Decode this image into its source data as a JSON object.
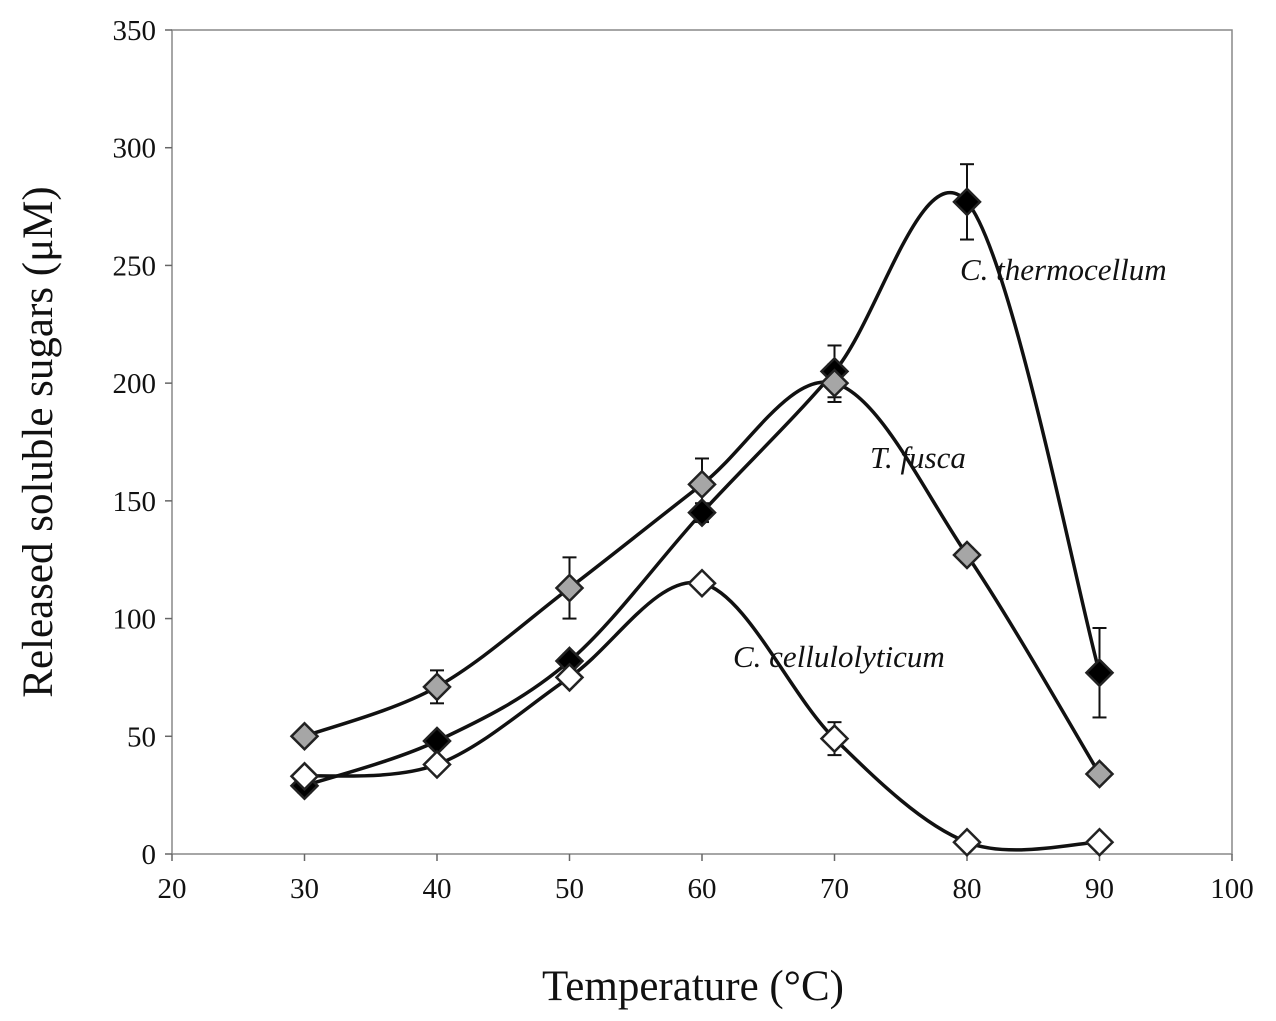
{
  "chart_data": {
    "type": "scatter",
    "xlabel": "Temperature (°C)",
    "ylabel": "Released soluble sugars (μM)",
    "xlim": [
      20,
      100
    ],
    "ylim": [
      0,
      350
    ],
    "xticks": [
      20,
      30,
      40,
      50,
      60,
      70,
      80,
      90,
      100
    ],
    "yticks": [
      0,
      50,
      100,
      150,
      200,
      250,
      300,
      350
    ],
    "grid": false,
    "series": [
      {
        "name": "C. thermocellum",
        "marker": "diamond",
        "fill": "#000000",
        "x": [
          30,
          40,
          50,
          60,
          70,
          80,
          90
        ],
        "y": [
          29,
          48,
          82,
          145,
          205,
          277,
          77
        ],
        "err": [
          3,
          3,
          3,
          4,
          11,
          16,
          19
        ]
      },
      {
        "name": "T. fusca",
        "marker": "diamond",
        "fill": "#a6a6a6",
        "x": [
          30,
          40,
          50,
          60,
          70,
          80,
          90
        ],
        "y": [
          50,
          71,
          113,
          157,
          200,
          127,
          34
        ],
        "err": [
          2,
          7,
          13,
          11,
          8,
          3,
          3
        ]
      },
      {
        "name": "C. cellulolyticum",
        "marker": "diamond",
        "fill": "#ffffff",
        "x": [
          30,
          40,
          50,
          60,
          70,
          80,
          90
        ],
        "y": [
          33,
          38,
          75,
          115,
          49,
          5,
          5
        ],
        "err": [
          2,
          2,
          3,
          2,
          7,
          2,
          2
        ]
      }
    ]
  }
}
